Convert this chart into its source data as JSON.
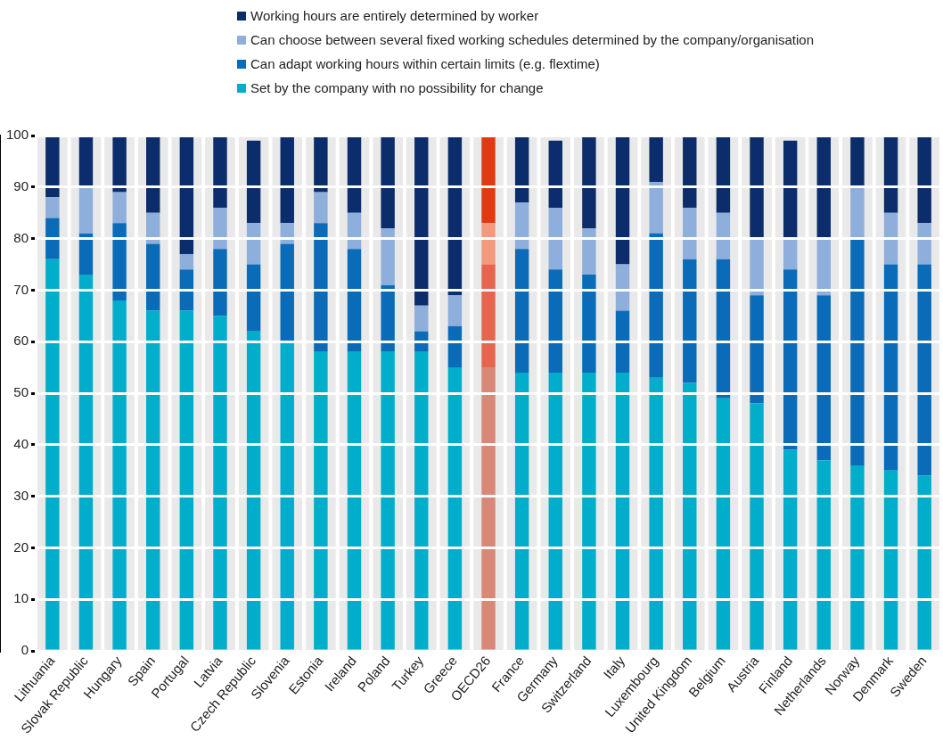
{
  "chart_data": {
    "type": "bar",
    "stacked": true,
    "legend": "top",
    "grid": "y",
    "categories": [
      "Lithuania",
      "Slovak Republic",
      "Hungary",
      "Spain",
      "Portugal",
      "Latvia",
      "Czech Republic",
      "Slovenia",
      "Estonia",
      "Ireland",
      "Poland",
      "Turkey",
      "Greece",
      "OECD26",
      "France",
      "Germany",
      "Switzerland",
      "Italy",
      "Luxembourg",
      "United Kingdom",
      "Belgium",
      "Austria",
      "Finland",
      "Netherlands",
      "Norway",
      "Denmark",
      "Sweden"
    ],
    "ylim": [
      0,
      100
    ],
    "yticks": [
      0,
      10,
      20,
      30,
      40,
      50,
      60,
      70,
      80,
      90,
      100
    ],
    "series": [
      {
        "name": "Set by the company with no possibility for change",
        "color": "#00aecb",
        "colors": [
          "#00aecb",
          "#00aecb",
          "#00aecb",
          "#00aecb",
          "#00aecb",
          "#00aecb",
          "#00aecb",
          "#00aecb",
          "#00aecb",
          "#00aecb",
          "#00aecb",
          "#00aecb",
          "#00aecb",
          "#d98878",
          "#00aecb",
          "#00aecb",
          "#00aecb",
          "#00aecb",
          "#00aecb",
          "#00aecb",
          "#00aecb",
          "#00aecb",
          "#00aecb",
          "#00aecb",
          "#00aecb",
          "#00aecb",
          "#00aecb"
        ],
        "values": [
          76,
          73,
          68,
          66,
          66,
          65,
          62,
          60,
          58,
          58,
          58,
          58,
          55,
          55,
          54,
          54,
          54,
          54,
          53,
          52,
          49,
          48,
          39,
          37,
          36,
          35,
          34
        ]
      },
      {
        "name": "Can adapt working hours within certain limits (e.g. flextime)",
        "color": "#0a6cb8",
        "colors": [
          "#0a6cb8",
          "#0a6cb8",
          "#0a6cb8",
          "#0a6cb8",
          "#0a6cb8",
          "#0a6cb8",
          "#0a6cb8",
          "#0a6cb8",
          "#0a6cb8",
          "#0a6cb8",
          "#0a6cb8",
          "#0a6cb8",
          "#0a6cb8",
          "#e5654e",
          "#0a6cb8",
          "#0a6cb8",
          "#0a6cb8",
          "#0a6cb8",
          "#0a6cb8",
          "#0a6cb8",
          "#0a6cb8",
          "#0a6cb8",
          "#0a6cb8",
          "#0a6cb8",
          "#0a6cb8",
          "#0a6cb8",
          "#0a6cb8"
        ],
        "values": [
          8,
          8,
          15,
          13,
          8,
          13,
          13,
          19,
          25,
          20,
          13,
          4,
          8,
          20,
          24,
          20,
          19,
          12,
          28,
          24,
          27,
          21,
          35,
          32,
          44,
          40,
          41
        ]
      },
      {
        "name": "Can choose between several fixed working schedules determined by the company/organisation",
        "color": "#8eaedb",
        "colors": [
          "#8eaedb",
          "#8eaedb",
          "#8eaedb",
          "#8eaedb",
          "#8eaedb",
          "#8eaedb",
          "#8eaedb",
          "#8eaedb",
          "#8eaedb",
          "#8eaedb",
          "#8eaedb",
          "#8eaedb",
          "#8eaedb",
          "#f39a7e",
          "#8eaedb",
          "#8eaedb",
          "#8eaedb",
          "#8eaedb",
          "#8eaedb",
          "#8eaedb",
          "#8eaedb",
          "#8eaedb",
          "#8eaedb",
          "#8eaedb",
          "#8eaedb",
          "#8eaedb",
          "#8eaedb"
        ],
        "values": [
          4,
          9,
          6,
          6,
          3,
          8,
          8,
          4,
          6,
          7,
          11,
          5,
          6,
          8,
          9,
          12,
          9,
          9,
          10,
          10,
          9,
          11,
          6,
          11,
          10,
          10,
          8
        ]
      },
      {
        "name": "Working hours are entirely determined by worker",
        "color": "#0b2d6b",
        "colors": [
          "#0b2d6b",
          "#0b2d6b",
          "#0b2d6b",
          "#0b2d6b",
          "#0b2d6b",
          "#0b2d6b",
          "#0b2d6b",
          "#0b2d6b",
          "#0b2d6b",
          "#0b2d6b",
          "#0b2d6b",
          "#0b2d6b",
          "#0b2d6b",
          "#e03a12",
          "#0b2d6b",
          "#0b2d6b",
          "#0b2d6b",
          "#0b2d6b",
          "#0b2d6b",
          "#0b2d6b",
          "#0b2d6b",
          "#0b2d6b",
          "#0b2d6b",
          "#0b2d6b",
          "#0b2d6b",
          "#0b2d6b",
          "#0b2d6b"
        ],
        "values": [
          12,
          10,
          11,
          15,
          23,
          14,
          16,
          17,
          11,
          15,
          18,
          33,
          31,
          17,
          13,
          13,
          18,
          25,
          9,
          14,
          15,
          20,
          19,
          20,
          10,
          15,
          17
        ]
      }
    ]
  }
}
